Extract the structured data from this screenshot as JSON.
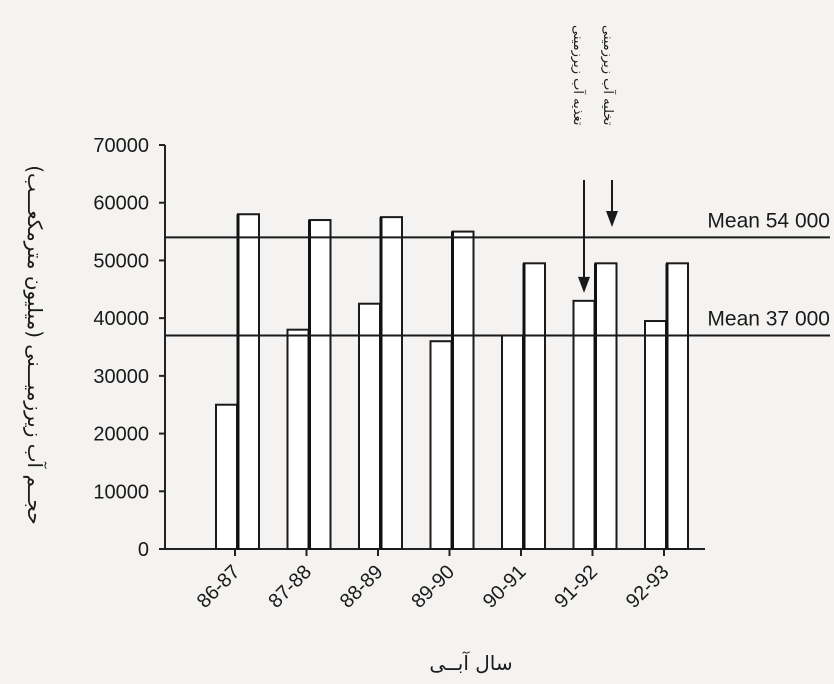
{
  "chart_data": {
    "type": "bar",
    "xlabel": "سال آبــی",
    "ylabel": "حجــم آب زیرزمیـــنی (میلیون مترمکعـــب)",
    "ylim": [
      0,
      70000
    ],
    "yticks": [
      0,
      10000,
      20000,
      30000,
      40000,
      50000,
      60000,
      70000
    ],
    "categories": [
      "86-87",
      "87-88",
      "88-89",
      "89-90",
      "90-91",
      "91-92",
      "92-93"
    ],
    "series": [
      {
        "values": [
          25000,
          38000,
          42500,
          36000,
          37000,
          43000,
          39500
        ]
      },
      {
        "values": [
          58000,
          57000,
          57500,
          55000,
          49500,
          49500,
          49500
        ]
      }
    ],
    "reference_lines": [
      {
        "value": 54000,
        "label": "Mean 54 000"
      },
      {
        "value": 37000,
        "label": "Mean 37 000"
      }
    ],
    "annotations": [
      {
        "text": "تغذیه آب زیرزمینی",
        "category": "91-92",
        "series": 0
      },
      {
        "text": "تخلیه آب زیرزمینی",
        "category": "91-92",
        "series": 1
      }
    ],
    "grid": false,
    "legend": "none"
  }
}
